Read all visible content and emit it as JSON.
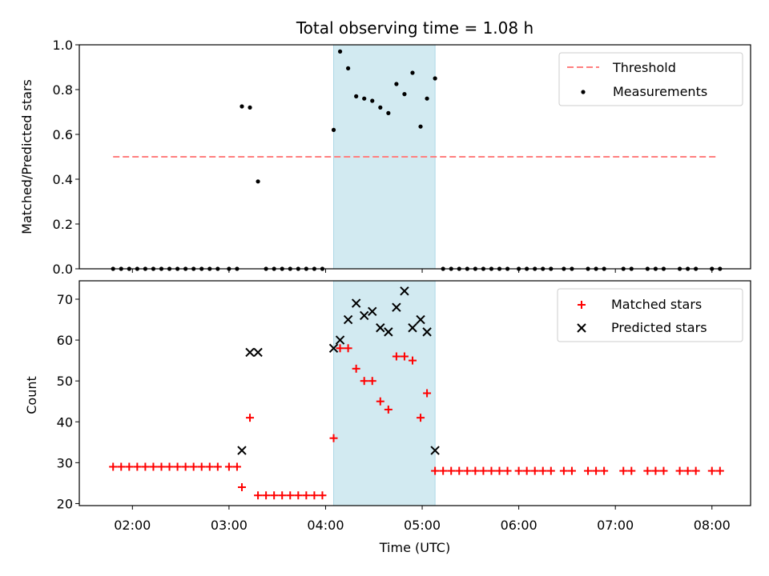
{
  "title": "Total observing time = 1.08 h",
  "chart_data": [
    {
      "type": "scatter",
      "ylabel": "Matched/Predicted stars",
      "ylim": [
        0,
        1.0
      ],
      "yticks": [
        0.0,
        0.2,
        0.4,
        0.6,
        0.8,
        1.0
      ],
      "xlim_hours": [
        1.45,
        8.4
      ],
      "shaded_band": {
        "x0": "04:05",
        "x1": "05:08",
        "color": "#add8e6"
      },
      "threshold": {
        "name": "Threshold",
        "value": 0.5,
        "x_from": "01:48",
        "x_to": "08:03",
        "color": "#ff7f7f"
      },
      "legend": [
        "Threshold",
        "Measurements"
      ],
      "legend_position": "upper-right",
      "measurements_name": "Measurements",
      "measurements": [
        [
          "01:48",
          0
        ],
        [
          "01:53",
          0
        ],
        [
          "01:58",
          0
        ],
        [
          "02:03",
          0
        ],
        [
          "02:08",
          0
        ],
        [
          "02:13",
          0
        ],
        [
          "02:18",
          0
        ],
        [
          "02:23",
          0
        ],
        [
          "02:28",
          0
        ],
        [
          "02:33",
          0
        ],
        [
          "02:38",
          0
        ],
        [
          "02:43",
          0
        ],
        [
          "02:48",
          0
        ],
        [
          "02:53",
          0
        ],
        [
          "03:00",
          0
        ],
        [
          "03:05",
          0
        ],
        [
          "03:08",
          0.725
        ],
        [
          "03:13",
          0.72
        ],
        [
          "03:18",
          0.39
        ],
        [
          "03:23",
          0
        ],
        [
          "03:28",
          0
        ],
        [
          "03:33",
          0
        ],
        [
          "03:38",
          0
        ],
        [
          "03:43",
          0
        ],
        [
          "03:48",
          0
        ],
        [
          "03:53",
          0
        ],
        [
          "03:58",
          0
        ],
        [
          "04:05",
          0.62
        ],
        [
          "04:09",
          0.97
        ],
        [
          "04:14",
          0.895
        ],
        [
          "04:19",
          0.77
        ],
        [
          "04:24",
          0.76
        ],
        [
          "04:29",
          0.75
        ],
        [
          "04:34",
          0.72
        ],
        [
          "04:39",
          0.695
        ],
        [
          "04:44",
          0.825
        ],
        [
          "04:49",
          0.78
        ],
        [
          "04:54",
          0.875
        ],
        [
          "04:59",
          0.635
        ],
        [
          "05:03",
          0.76
        ],
        [
          "05:08",
          0.85
        ],
        [
          "05:13",
          0
        ],
        [
          "05:18",
          0
        ],
        [
          "05:23",
          0
        ],
        [
          "05:28",
          0
        ],
        [
          "05:33",
          0
        ],
        [
          "05:38",
          0
        ],
        [
          "05:43",
          0
        ],
        [
          "05:48",
          0
        ],
        [
          "05:53",
          0
        ],
        [
          "06:00",
          0
        ],
        [
          "06:05",
          0
        ],
        [
          "06:10",
          0
        ],
        [
          "06:15",
          0
        ],
        [
          "06:20",
          0
        ],
        [
          "06:28",
          0
        ],
        [
          "06:33",
          0
        ],
        [
          "06:43",
          0
        ],
        [
          "06:48",
          0
        ],
        [
          "06:53",
          0
        ],
        [
          "07:05",
          0
        ],
        [
          "07:10",
          0
        ],
        [
          "07:20",
          0
        ],
        [
          "07:25",
          0
        ],
        [
          "07:30",
          0
        ],
        [
          "07:40",
          0
        ],
        [
          "07:45",
          0
        ],
        [
          "07:50",
          0
        ],
        [
          "08:00",
          0
        ],
        [
          "08:05",
          0
        ]
      ]
    },
    {
      "type": "scatter",
      "xlabel": "Time (UTC)",
      "ylabel": "Count",
      "ylim": [
        19.5,
        74.5
      ],
      "yticks": [
        20,
        30,
        40,
        50,
        60,
        70
      ],
      "xticks": [
        "02:00",
        "03:00",
        "04:00",
        "05:00",
        "06:00",
        "07:00",
        "08:00"
      ],
      "xlim_hours": [
        1.45,
        8.4
      ],
      "shaded_band": {
        "x0": "04:05",
        "x1": "05:08",
        "color": "#add8e6"
      },
      "legend": [
        "Matched stars",
        "Predicted stars"
      ],
      "legend_position": "upper-right",
      "series": [
        {
          "name": "Matched stars",
          "marker": "plus",
          "color": "#ff0000",
          "points": [
            [
              "01:48",
              29
            ],
            [
              "01:53",
              29
            ],
            [
              "01:58",
              29
            ],
            [
              "02:03",
              29
            ],
            [
              "02:08",
              29
            ],
            [
              "02:13",
              29
            ],
            [
              "02:18",
              29
            ],
            [
              "02:23",
              29
            ],
            [
              "02:28",
              29
            ],
            [
              "02:33",
              29
            ],
            [
              "02:38",
              29
            ],
            [
              "02:43",
              29
            ],
            [
              "02:48",
              29
            ],
            [
              "02:53",
              29
            ],
            [
              "03:00",
              29
            ],
            [
              "03:05",
              29
            ],
            [
              "03:08",
              24
            ],
            [
              "03:13",
              41
            ],
            [
              "03:18",
              22
            ],
            [
              "03:23",
              22
            ],
            [
              "03:28",
              22
            ],
            [
              "03:33",
              22
            ],
            [
              "03:38",
              22
            ],
            [
              "03:43",
              22
            ],
            [
              "03:48",
              22
            ],
            [
              "03:53",
              22
            ],
            [
              "03:58",
              22
            ],
            [
              "04:05",
              36
            ],
            [
              "04:09",
              58
            ],
            [
              "04:14",
              58
            ],
            [
              "04:19",
              53
            ],
            [
              "04:24",
              50
            ],
            [
              "04:29",
              50
            ],
            [
              "04:34",
              45
            ],
            [
              "04:39",
              43
            ],
            [
              "04:44",
              56
            ],
            [
              "04:49",
              56
            ],
            [
              "04:54",
              55
            ],
            [
              "04:59",
              41
            ],
            [
              "05:03",
              47
            ],
            [
              "05:08",
              28
            ],
            [
              "05:13",
              28
            ],
            [
              "05:18",
              28
            ],
            [
              "05:23",
              28
            ],
            [
              "05:28",
              28
            ],
            [
              "05:33",
              28
            ],
            [
              "05:38",
              28
            ],
            [
              "05:43",
              28
            ],
            [
              "05:48",
              28
            ],
            [
              "05:53",
              28
            ],
            [
              "06:00",
              28
            ],
            [
              "06:05",
              28
            ],
            [
              "06:10",
              28
            ],
            [
              "06:15",
              28
            ],
            [
              "06:20",
              28
            ],
            [
              "06:28",
              28
            ],
            [
              "06:33",
              28
            ],
            [
              "06:43",
              28
            ],
            [
              "06:48",
              28
            ],
            [
              "06:53",
              28
            ],
            [
              "07:05",
              28
            ],
            [
              "07:10",
              28
            ],
            [
              "07:20",
              28
            ],
            [
              "07:25",
              28
            ],
            [
              "07:30",
              28
            ],
            [
              "07:40",
              28
            ],
            [
              "07:45",
              28
            ],
            [
              "07:50",
              28
            ],
            [
              "08:00",
              28
            ],
            [
              "08:05",
              28
            ]
          ]
        },
        {
          "name": "Predicted stars",
          "marker": "x",
          "color": "#000000",
          "points": [
            [
              "03:08",
              33
            ],
            [
              "03:13",
              57
            ],
            [
              "03:18",
              57
            ],
            [
              "04:05",
              58
            ],
            [
              "04:09",
              60
            ],
            [
              "04:14",
              65
            ],
            [
              "04:19",
              69
            ],
            [
              "04:24",
              66
            ],
            [
              "04:29",
              67
            ],
            [
              "04:34",
              63
            ],
            [
              "04:39",
              62
            ],
            [
              "04:44",
              68
            ],
            [
              "04:49",
              72
            ],
            [
              "04:54",
              63
            ],
            [
              "04:59",
              65
            ],
            [
              "05:03",
              62
            ],
            [
              "05:08",
              33
            ]
          ]
        }
      ]
    }
  ]
}
